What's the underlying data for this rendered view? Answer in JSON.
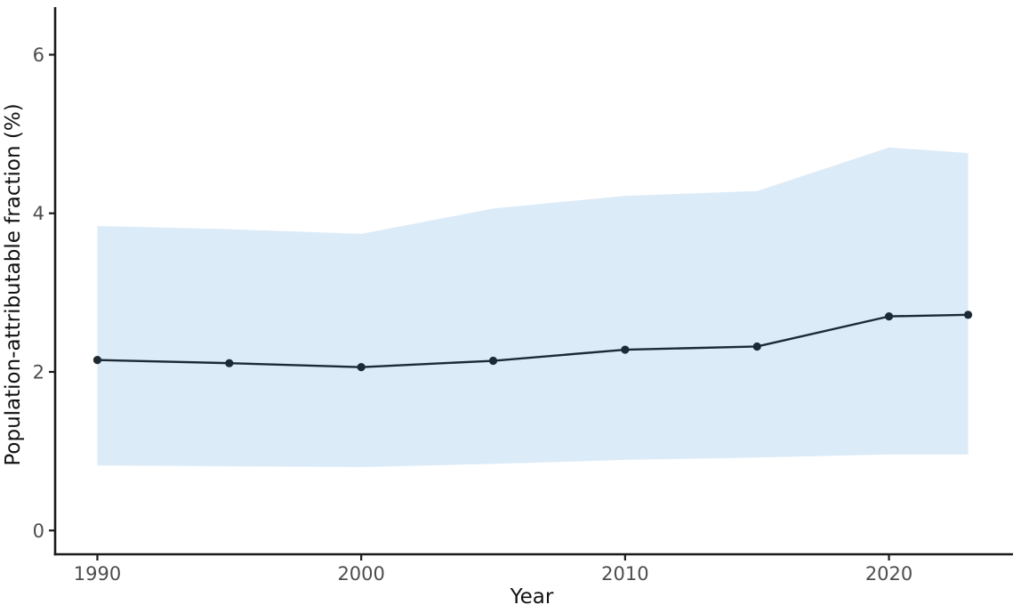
{
  "chart_data": {
    "type": "line",
    "title": "",
    "xlabel": "Year",
    "ylabel": "Population-attributable fraction (%)",
    "x": [
      1990,
      1995,
      2000,
      2005,
      2010,
      2015,
      2020,
      2023
    ],
    "series": [
      {
        "name": "population-attributable-fraction",
        "values": [
          2.15,
          2.11,
          2.06,
          2.14,
          2.28,
          2.32,
          2.7,
          2.72
        ],
        "marker": "point"
      }
    ],
    "band": {
      "name": "uncertainty-interval",
      "upper": [
        3.84,
        3.8,
        3.74,
        4.06,
        4.22,
        4.28,
        4.83,
        4.76
      ],
      "lower": [
        0.82,
        0.81,
        0.8,
        0.84,
        0.89,
        0.92,
        0.96,
        0.96
      ]
    },
    "x_ticks": [
      "1990",
      "2000",
      "2010",
      "2020"
    ],
    "x_tick_values": [
      1990,
      2000,
      2010,
      2020
    ],
    "y_ticks": [
      "0",
      "2",
      "4",
      "6"
    ],
    "y_tick_values": [
      0,
      2,
      4,
      6
    ],
    "xlim": [
      1988.4,
      2024.7
    ],
    "ylim": [
      -0.3,
      6.6
    ],
    "grid": false,
    "legend": "none",
    "colors": {
      "line": "#1c2a35",
      "point": "#1c2a35",
      "band": "#dcebf8",
      "axis_line": "#1a1a1a",
      "tick_label": "#4d4d4d",
      "axis_title": "#111111",
      "background": "#ffffff"
    }
  }
}
